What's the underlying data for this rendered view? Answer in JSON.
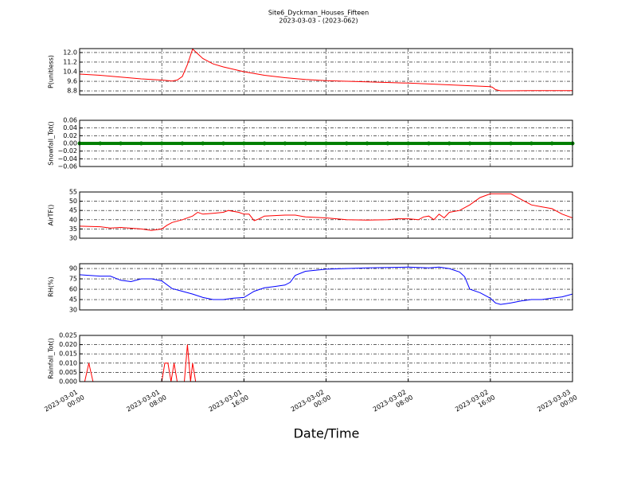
{
  "title": "Site6_Dyckman_Houses_Fifteen",
  "subtitle": "2023-03-03 - (2023-062)",
  "x_label": "Date/Time",
  "xlim": [
    "2023-03-01 00:00",
    "2023-03-03 00:00"
  ],
  "xticks": [
    {
      "value": "2023-03-01 00:00",
      "label": [
        "2023-03-01",
        "00:00"
      ]
    },
    {
      "value": "2023-03-01 08:00",
      "label": [
        "2023-03-01",
        "08:00"
      ]
    },
    {
      "value": "2023-03-01 16:00",
      "label": [
        "2023-03-01",
        "16:00"
      ]
    },
    {
      "value": "2023-03-02 00:00",
      "label": [
        "2023-03-02",
        "00:00"
      ]
    },
    {
      "value": "2023-03-02 08:00",
      "label": [
        "2023-03-02",
        "08:00"
      ]
    },
    {
      "value": "2023-03-02 16:00",
      "label": [
        "2023-03-02",
        "16:00"
      ]
    },
    {
      "value": "2023-03-03 00:00",
      "label": [
        "2023-03-03",
        "00:00"
      ]
    }
  ],
  "chart_data": [
    {
      "type": "line",
      "y_label": "P(unitless)",
      "color": "#ff0000",
      "grid": true,
      "ylim": [
        8.47,
        12.33
      ],
      "yticks": [
        8.8,
        9.6,
        10.4,
        11.2,
        {
          "value": 12,
          "label": "12.0"
        }
      ],
      "x": [
        "2023-03-01 00:00",
        "2023-03-01 02:00",
        "2023-03-01 04:00",
        "2023-03-01 06:00",
        "2023-03-01 08:00",
        "2023-03-01 09:00",
        "2023-03-01 09:30",
        "2023-03-01 10:00",
        "2023-03-01 10:30",
        "2023-03-01 11:00",
        "2023-03-01 11:30",
        "2023-03-01 12:00",
        "2023-03-01 13:00",
        "2023-03-01 14:00",
        "2023-03-01 16:00",
        "2023-03-01 18:00",
        "2023-03-01 20:00",
        "2023-03-01 22:00",
        "2023-03-02 00:00",
        "2023-03-02 04:00",
        "2023-03-02 08:00",
        "2023-03-02 12:00",
        "2023-03-02 16:00",
        "2023-03-02 16:12",
        "2023-03-02 16:30",
        "2023-03-02 17:00",
        "2023-03-02 20:00",
        "2023-03-03 00:00"
      ],
      "values": [
        10.2,
        10.1,
        9.95,
        9.8,
        9.7,
        9.62,
        9.7,
        10.0,
        11.0,
        12.3,
        11.9,
        11.5,
        11.05,
        10.8,
        10.4,
        10.1,
        9.9,
        9.75,
        9.65,
        9.55,
        9.45,
        9.3,
        9.15,
        9.1,
        8.9,
        8.8,
        8.82,
        8.82
      ]
    },
    {
      "type": "scatter",
      "y_label": "Snowfall_Tot()",
      "color": "#008000",
      "grid": true,
      "ylim": [
        -0.06,
        0.06
      ],
      "yticks": [
        {
          "value": -0.06,
          "label": "−0.06"
        },
        {
          "value": -0.04,
          "label": "−0.04"
        },
        {
          "value": -0.02,
          "label": "−0.02"
        },
        {
          "value": 0,
          "label": "0.00"
        },
        0.02,
        0.04,
        0.06
      ],
      "x": [
        "2023-03-01 00:00",
        "2023-03-01 02:00",
        "2023-03-01 04:00",
        "2023-03-01 06:00",
        "2023-03-01 08:00",
        "2023-03-01 10:00",
        "2023-03-01 12:00",
        "2023-03-01 14:00",
        "2023-03-01 16:00",
        "2023-03-01 18:00",
        "2023-03-01 20:00",
        "2023-03-01 22:00",
        "2023-03-02 00:00",
        "2023-03-02 02:00",
        "2023-03-02 04:00",
        "2023-03-02 06:00",
        "2023-03-02 08:00",
        "2023-03-02 10:00",
        "2023-03-02 12:00",
        "2023-03-02 14:00",
        "2023-03-02 16:00",
        "2023-03-02 18:00",
        "2023-03-02 20:00",
        "2023-03-02 22:00",
        "2023-03-03 00:00"
      ],
      "values": [
        0,
        0,
        0,
        0,
        0,
        0,
        0,
        0,
        0,
        0,
        0,
        0,
        0,
        0,
        0,
        0,
        0,
        0,
        0,
        0,
        0,
        0,
        0,
        0,
        0
      ]
    },
    {
      "type": "line",
      "y_label": "AirTF()",
      "color": "#ff0000",
      "grid": true,
      "ylim": [
        30,
        55
      ],
      "yticks": [
        30,
        35,
        40,
        45,
        50,
        55
      ],
      "x": [
        "2023-03-01 00:00",
        "2023-03-01 02:00",
        "2023-03-01 03:00",
        "2023-03-01 04:00",
        "2023-03-01 06:00",
        "2023-03-01 07:00",
        "2023-03-01 08:00",
        "2023-03-01 08:30",
        "2023-03-01 09:00",
        "2023-03-01 10:00",
        "2023-03-01 11:00",
        "2023-03-01 11:30",
        "2023-03-01 12:00",
        "2023-03-01 13:00",
        "2023-03-01 14:00",
        "2023-03-01 14:30",
        "2023-03-01 15:30",
        "2023-03-01 16:00",
        "2023-03-01 16:30",
        "2023-03-01 17:00",
        "2023-03-01 17:30",
        "2023-03-01 18:00",
        "2023-03-01 20:00",
        "2023-03-01 21:00",
        "2023-03-01 22:00",
        "2023-03-02 00:00",
        "2023-03-02 02:00",
        "2023-03-02 04:00",
        "2023-03-02 06:00",
        "2023-03-02 07:00",
        "2023-03-02 08:00",
        "2023-03-02 09:00",
        "2023-03-02 09:30",
        "2023-03-02 10:00",
        "2023-03-02 10:30",
        "2023-03-02 11:00",
        "2023-03-02 11:30",
        "2023-03-02 12:00",
        "2023-03-02 13:00",
        "2023-03-02 14:00",
        "2023-03-02 15:00",
        "2023-03-02 16:00",
        "2023-03-02 17:00",
        "2023-03-02 18:00",
        "2023-03-02 19:00",
        "2023-03-02 20:00",
        "2023-03-02 21:00",
        "2023-03-02 22:00",
        "2023-03-02 23:00",
        "2023-03-03 00:00"
      ],
      "values": [
        36.5,
        36.2,
        35.5,
        35.8,
        35,
        34.2,
        35,
        37,
        38.5,
        40,
        42,
        44,
        43,
        43.5,
        44,
        45,
        44,
        43,
        43,
        39.5,
        40.5,
        42,
        42.5,
        42.5,
        41.5,
        41,
        40,
        39.8,
        40,
        40.5,
        40.5,
        40,
        41.5,
        42,
        40,
        43,
        41,
        44,
        45,
        48,
        52,
        54,
        54,
        54,
        51,
        48,
        47,
        46,
        43,
        41
      ]
    },
    {
      "type": "line",
      "y_label": "RH(%)",
      "color": "#0000ff",
      "grid": true,
      "ylim": [
        30,
        97
      ],
      "yticks": [
        30,
        45,
        60,
        75,
        90
      ],
      "x": [
        "2023-03-01 00:00",
        "2023-03-01 02:00",
        "2023-03-01 03:00",
        "2023-03-01 04:00",
        "2023-03-01 05:00",
        "2023-03-01 06:00",
        "2023-03-01 07:00",
        "2023-03-01 08:00",
        "2023-03-01 09:00",
        "2023-03-01 10:00",
        "2023-03-01 11:00",
        "2023-03-01 12:00",
        "2023-03-01 13:00",
        "2023-03-01 14:00",
        "2023-03-01 15:00",
        "2023-03-01 16:00",
        "2023-03-01 17:00",
        "2023-03-01 18:00",
        "2023-03-01 19:00",
        "2023-03-01 20:00",
        "2023-03-01 20:30",
        "2023-03-01 21:00",
        "2023-03-01 22:00",
        "2023-03-02 00:00",
        "2023-03-02 04:00",
        "2023-03-02 08:00",
        "2023-03-02 10:00",
        "2023-03-02 11:00",
        "2023-03-02 12:00",
        "2023-03-02 13:00",
        "2023-03-02 13:30",
        "2023-03-02 14:00",
        "2023-03-02 15:00",
        "2023-03-02 16:00",
        "2023-03-02 16:30",
        "2023-03-02 17:00",
        "2023-03-02 18:00",
        "2023-03-02 19:00",
        "2023-03-02 20:00",
        "2023-03-02 21:00",
        "2023-03-02 22:00",
        "2023-03-02 23:00",
        "2023-03-03 00:00"
      ],
      "values": [
        81,
        79,
        79,
        73,
        71,
        75,
        75,
        72,
        61,
        57,
        53,
        48,
        45,
        45,
        47,
        48,
        57,
        62,
        64,
        66,
        70,
        80,
        86,
        89,
        91,
        92,
        91,
        92,
        90,
        85,
        78,
        60,
        55,
        47,
        40,
        38,
        40,
        43,
        45,
        45,
        47,
        49,
        53
      ]
    },
    {
      "type": "line",
      "y_label": "Rainfall_Tot()",
      "color": "#ff0000",
      "grid": true,
      "ylim": [
        0,
        0.025
      ],
      "yticks": [
        {
          "value": 0,
          "label": "0.000"
        },
        {
          "value": 0.005,
          "label": "0.005"
        },
        {
          "value": 0.01,
          "label": "0.010"
        },
        {
          "value": 0.015,
          "label": "0.015"
        },
        {
          "value": 0.02,
          "label": "0.020"
        },
        0.025
      ],
      "x": [
        "2023-03-01 00:00",
        "2023-03-01 00:30",
        "2023-03-01 00:54",
        "2023-03-01 01:18",
        "2023-03-01 08:00",
        "2023-03-01 08:18",
        "2023-03-01 08:36",
        "2023-03-01 08:54",
        "2023-03-01 09:12",
        "2023-03-01 09:30",
        "2023-03-01 09:48",
        "2023-03-01 10:12",
        "2023-03-01 10:30",
        "2023-03-01 10:48",
        "2023-03-01 11:00",
        "2023-03-01 11:18",
        "2023-03-03 00:00"
      ],
      "values": [
        0,
        0,
        0.01,
        0,
        0,
        0.01,
        0.01,
        0,
        0.01,
        0,
        0,
        0,
        0.02,
        0,
        0.01,
        0,
        0
      ]
    }
  ]
}
